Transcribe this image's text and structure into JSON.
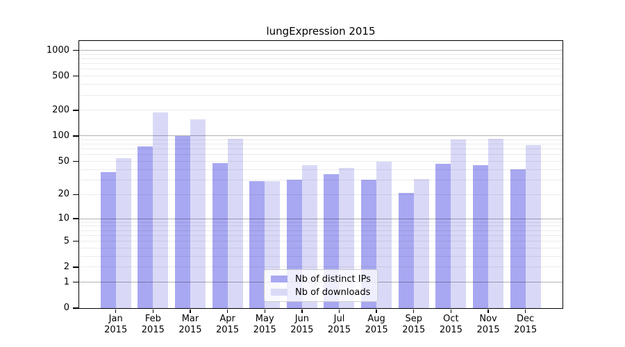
{
  "chart_data": {
    "type": "bar",
    "title": "lungExpression 2015",
    "categories": [
      "Jan",
      "Feb",
      "Mar",
      "Apr",
      "May",
      "Jun",
      "Jul",
      "Aug",
      "Sep",
      "Oct",
      "Nov",
      "Dec"
    ],
    "x_year_label": "2015",
    "series": [
      {
        "name": "Nb of distinct IPs",
        "color": "#a8a8f2",
        "values": [
          37,
          75,
          100,
          48,
          29,
          30,
          35,
          30,
          21,
          47,
          45,
          40
        ]
      },
      {
        "name": "Nb of downloads",
        "color": "#d9d9f7",
        "values": [
          55,
          188,
          155,
          92,
          29,
          45,
          42,
          50,
          31,
          90,
          93,
          78
        ]
      }
    ],
    "y_axis": {
      "scale": "log1p",
      "tick_values": [
        1000,
        500,
        200,
        100,
        50,
        20,
        10,
        5,
        2,
        1,
        0
      ],
      "major_gridlines": [
        1,
        10,
        100,
        1000
      ],
      "minor_gridlines": [
        2,
        3,
        4,
        5,
        6,
        7,
        8,
        9,
        20,
        30,
        40,
        50,
        60,
        70,
        80,
        90,
        200,
        300,
        400,
        500,
        600,
        700,
        800,
        900
      ],
      "range_max": 1280
    },
    "legend": {
      "position": "lower-center-inside"
    },
    "grid": true,
    "colors": {
      "bar_distinct_ips": "#a8a8f2",
      "bar_downloads": "#d9d9f7",
      "major_grid": "rgba(0,0,0,0.30)",
      "minor_grid": "rgba(0,0,0,0.08)",
      "axis": "#000000"
    }
  }
}
